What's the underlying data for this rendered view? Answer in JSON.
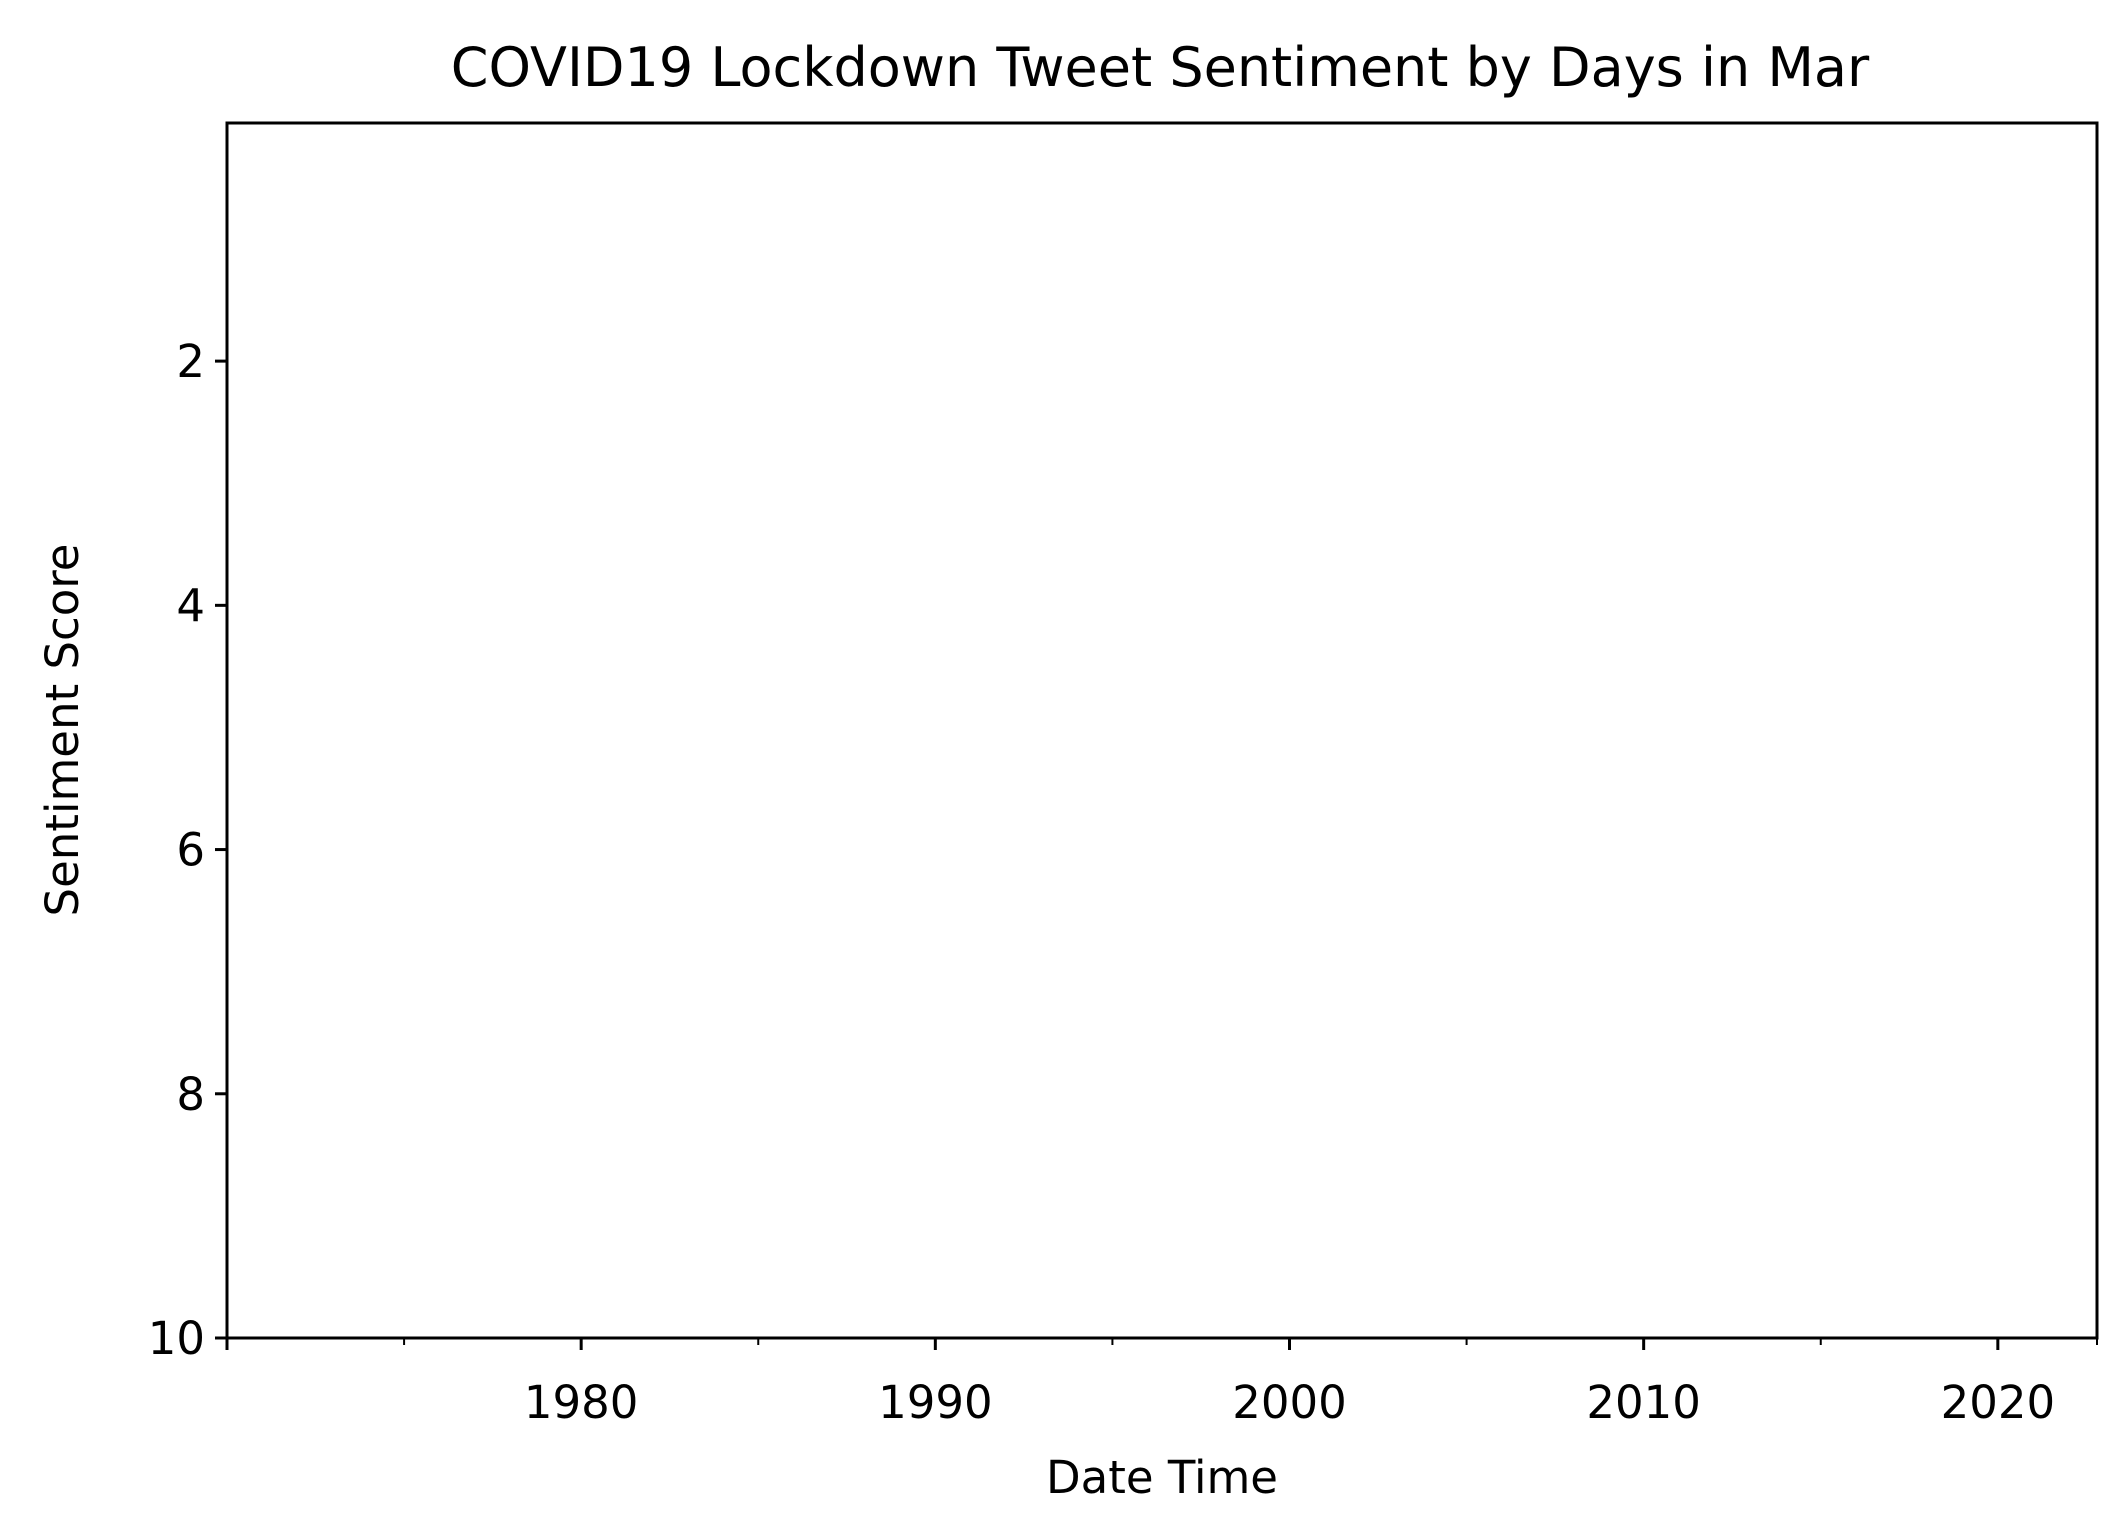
{
  "chart_data": {
    "type": "line",
    "title": "COVID19 Lockdown Tweet Sentiment by Days in Mar",
    "xlabel": "Date Time",
    "ylabel": "Sentiment Score",
    "x_axis_type": "date",
    "xlim": [
      1970,
      2022.8
    ],
    "ylim": [
      0.05,
      10
    ],
    "x_major_ticks": [
      {
        "value": 1980,
        "label": "1980"
      },
      {
        "value": 1990,
        "label": "1990"
      },
      {
        "value": 2000,
        "label": "2000"
      },
      {
        "value": 2010,
        "label": "2010"
      },
      {
        "value": 2020,
        "label": "2020"
      }
    ],
    "x_extra_major_ticks": [
      1970
    ],
    "x_minor_ticks": [
      1975,
      1985,
      1995,
      2005,
      2015,
      2022.8
    ],
    "y_ticks": [
      {
        "value": 2,
        "label": "2"
      },
      {
        "value": 4,
        "label": "4"
      },
      {
        "value": 6,
        "label": "6"
      },
      {
        "value": 8,
        "label": "8"
      },
      {
        "value": 10,
        "label": "10"
      }
    ],
    "y_inverted": true,
    "grid": false,
    "legend": "none",
    "series": []
  }
}
